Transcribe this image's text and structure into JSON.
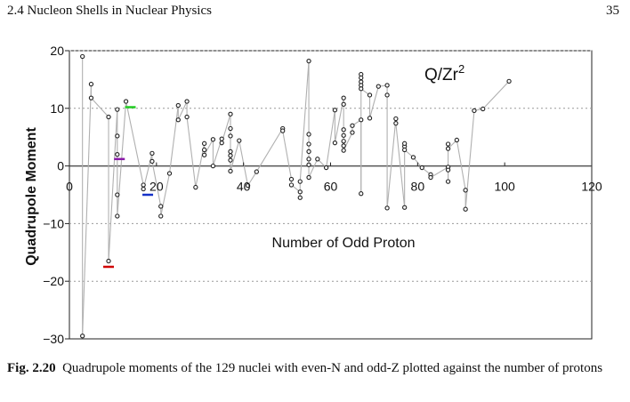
{
  "header": {
    "section": "2.4   Nucleon Shells in Nuclear Physics",
    "page": "35"
  },
  "figure": {
    "caption_label": "Fig. 2.20",
    "caption_text": "Quadrupole moments of the 129 nuclei with even-N and odd-Z plotted against the number of protons"
  },
  "chart_data": {
    "type": "line",
    "title": "Q/Zr",
    "title_superscript": "2",
    "xlabel": "Number of Odd Proton",
    "ylabel": "Quadrupole Moment",
    "xlim": [
      0,
      120
    ],
    "ylim": [
      -30,
      20
    ],
    "xticks": [
      0,
      20,
      40,
      60,
      80,
      100,
      120
    ],
    "yticks": [
      -30,
      -20,
      -10,
      0,
      10,
      20
    ],
    "grid": "dotted horizontal at ±10 and ±20",
    "colors": {
      "line": "#b0b0b0",
      "marker": "#222222",
      "zero_line": "#555555"
    },
    "series": [
      {
        "values": [
          [
            3,
            19
          ],
          [
            3,
            -29.5
          ],
          [
            5,
            14.2
          ],
          [
            5,
            11.8
          ],
          [
            9,
            8.5
          ],
          [
            9,
            -16.5
          ],
          [
            11,
            9.8
          ],
          [
            11,
            5.2
          ],
          [
            11,
            2.0
          ],
          [
            11,
            -5
          ],
          [
            11,
            -8.7
          ],
          [
            13,
            11.2
          ],
          [
            17,
            -3.3
          ],
          [
            17,
            -4
          ],
          [
            19,
            2.2
          ],
          [
            19,
            0.8
          ],
          [
            21,
            -7.0
          ],
          [
            21,
            -8.7
          ],
          [
            23,
            -1.3
          ],
          [
            25,
            10.5
          ],
          [
            25,
            8
          ],
          [
            27,
            11.2
          ],
          [
            27,
            8.5
          ],
          [
            29,
            -3.7
          ],
          [
            31,
            3.9
          ],
          [
            31,
            2.8
          ],
          [
            31,
            1.9
          ],
          [
            33,
            4.6
          ],
          [
            33,
            0
          ],
          [
            35,
            4.7
          ],
          [
            35,
            4.0
          ],
          [
            37,
            9.0
          ],
          [
            37,
            6.5
          ],
          [
            37,
            5.2
          ],
          [
            37,
            2.5
          ],
          [
            37,
            1.8
          ],
          [
            37,
            1.0
          ],
          [
            37,
            -0.9
          ],
          [
            39,
            4.4
          ],
          [
            41,
            -3.4
          ],
          [
            43,
            -1.0
          ],
          [
            49,
            6.5
          ],
          [
            49,
            6.1
          ],
          [
            51,
            -2.3
          ],
          [
            51,
            -3.3
          ],
          [
            53,
            -4.5
          ],
          [
            53,
            -5.5
          ],
          [
            53,
            -2.7
          ],
          [
            55,
            18.2
          ],
          [
            55,
            5.5
          ],
          [
            55,
            3.8
          ],
          [
            55,
            2.5
          ],
          [
            55,
            1.2
          ],
          [
            55,
            0.2
          ],
          [
            55,
            -2.0
          ],
          [
            57,
            1.2
          ],
          [
            59,
            -0.3
          ],
          [
            61,
            9.7
          ],
          [
            61,
            4.0
          ],
          [
            63,
            11.8
          ],
          [
            63,
            10.7
          ],
          [
            63,
            6.3
          ],
          [
            63,
            5.3
          ],
          [
            63,
            4.3
          ],
          [
            63,
            3.5
          ],
          [
            63,
            2.7
          ],
          [
            65,
            5.8
          ],
          [
            65,
            7.0
          ],
          [
            67,
            8.0
          ],
          [
            67,
            -4.8
          ],
          [
            67,
            15.9
          ],
          [
            67,
            15.3
          ],
          [
            67,
            14.6
          ],
          [
            67,
            14.0
          ],
          [
            67,
            13.4
          ],
          [
            69,
            12.3
          ],
          [
            69,
            8.3
          ],
          [
            71,
            13.8
          ],
          [
            73,
            14.0
          ],
          [
            73,
            12.3
          ],
          [
            73,
            -7.3
          ],
          [
            75,
            8.2
          ],
          [
            75,
            7.4
          ],
          [
            77,
            -7.2
          ],
          [
            77,
            3.4
          ],
          [
            77,
            3.9
          ],
          [
            77,
            2.8
          ],
          [
            79,
            1.5
          ],
          [
            81,
            -0.3
          ],
          [
            83,
            -1.5
          ],
          [
            83,
            -2.0
          ],
          [
            87,
            -0.2
          ],
          [
            87,
            -0.7
          ],
          [
            87,
            -2.7
          ],
          [
            87,
            3.8
          ],
          [
            87,
            3.0
          ],
          [
            89,
            4.5
          ],
          [
            91,
            -4.2
          ],
          [
            91,
            -7.5
          ],
          [
            93,
            9.6
          ],
          [
            95,
            9.9
          ],
          [
            101,
            14.7
          ]
        ]
      }
    ],
    "highlights": [
      {
        "x": 9,
        "y": -17.5,
        "color": "#d00000"
      },
      {
        "x": 11.5,
        "y": 1.2,
        "color": "#8a1aa8"
      },
      {
        "x": 14,
        "y": 10.2,
        "color": "#22cc22"
      },
      {
        "x": 18,
        "y": -5.0,
        "color": "#1530c8"
      }
    ]
  }
}
